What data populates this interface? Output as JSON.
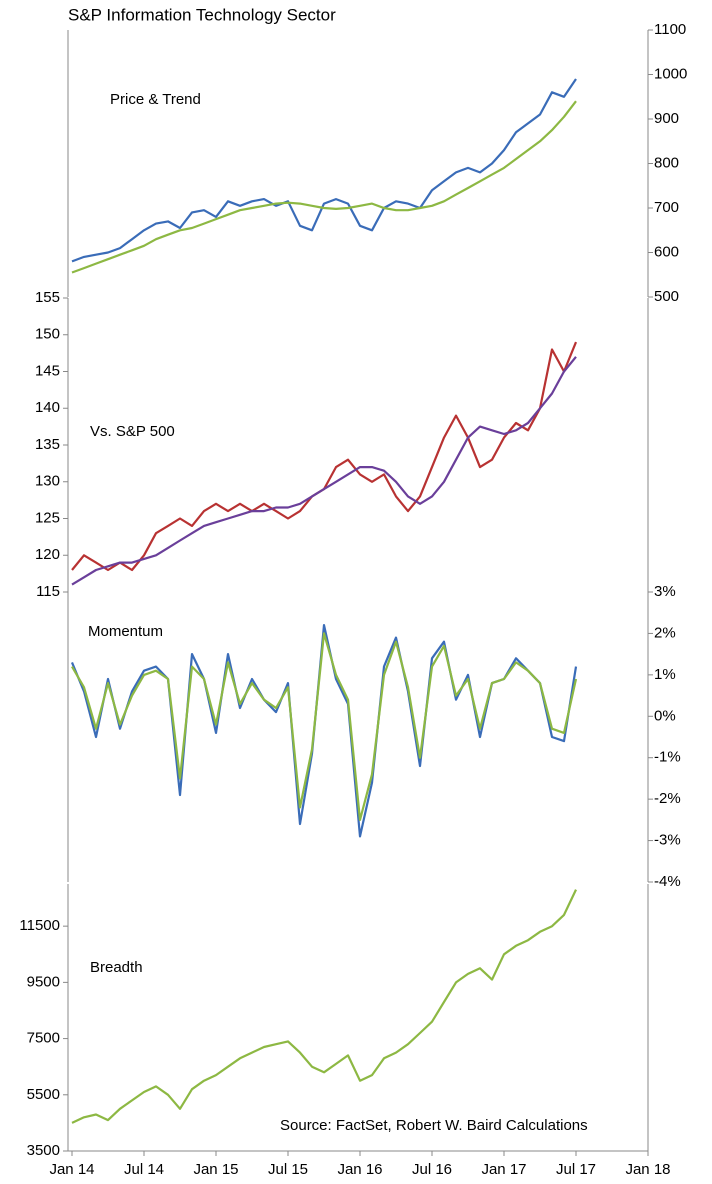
{
  "chart_data": [
    {
      "type": "line",
      "title": "S&P Information Technology Sector",
      "label": "Price & Trend",
      "x": [
        "2014-01",
        "2014-02",
        "2014-03",
        "2014-04",
        "2014-05",
        "2014-06",
        "2014-07",
        "2014-08",
        "2014-09",
        "2014-10",
        "2014-11",
        "2014-12",
        "2015-01",
        "2015-02",
        "2015-03",
        "2015-04",
        "2015-05",
        "2015-06",
        "2015-07",
        "2015-08",
        "2015-09",
        "2015-10",
        "2015-11",
        "2015-12",
        "2016-01",
        "2016-02",
        "2016-03",
        "2016-04",
        "2016-05",
        "2016-06",
        "2016-07",
        "2016-08",
        "2016-09",
        "2016-10",
        "2016-11",
        "2016-12",
        "2017-01",
        "2017-02",
        "2017-03",
        "2017-04",
        "2017-05",
        "2017-06",
        "2017-07"
      ],
      "xlim": [
        "2014-01",
        "2018-01"
      ],
      "ylim": [
        500,
        1100
      ],
      "yticks": [
        500,
        600,
        700,
        800,
        900,
        1000,
        1100
      ],
      "yaxis_side": "right",
      "series": [
        {
          "color": "#3a6cb8",
          "values": [
            580,
            590,
            595,
            600,
            610,
            630,
            650,
            665,
            670,
            655,
            690,
            695,
            680,
            715,
            705,
            715,
            720,
            705,
            715,
            660,
            650,
            710,
            720,
            710,
            660,
            650,
            700,
            715,
            710,
            700,
            740,
            760,
            780,
            790,
            780,
            800,
            830,
            870,
            890,
            910,
            960,
            950,
            990
          ]
        },
        {
          "color": "#8db843",
          "values": [
            555,
            565,
            575,
            585,
            595,
            605,
            615,
            630,
            640,
            650,
            655,
            665,
            675,
            685,
            695,
            700,
            705,
            710,
            712,
            710,
            705,
            700,
            698,
            700,
            705,
            710,
            700,
            695,
            695,
            700,
            705,
            715,
            730,
            745,
            760,
            775,
            790,
            810,
            830,
            850,
            875,
            905,
            940
          ]
        }
      ]
    },
    {
      "type": "line",
      "label": "Vs. S&P 500",
      "x": [
        "2014-01",
        "2014-02",
        "2014-03",
        "2014-04",
        "2014-05",
        "2014-06",
        "2014-07",
        "2014-08",
        "2014-09",
        "2014-10",
        "2014-11",
        "2014-12",
        "2015-01",
        "2015-02",
        "2015-03",
        "2015-04",
        "2015-05",
        "2015-06",
        "2015-07",
        "2015-08",
        "2015-09",
        "2015-10",
        "2015-11",
        "2015-12",
        "2016-01",
        "2016-02",
        "2016-03",
        "2016-04",
        "2016-05",
        "2016-06",
        "2016-07",
        "2016-08",
        "2016-09",
        "2016-10",
        "2016-11",
        "2016-12",
        "2017-01",
        "2017-02",
        "2017-03",
        "2017-04",
        "2017-05",
        "2017-06",
        "2017-07"
      ],
      "xlim": [
        "2014-01",
        "2018-01"
      ],
      "ylim": [
        115,
        155
      ],
      "yticks": [
        115,
        120,
        125,
        130,
        135,
        140,
        145,
        150,
        155
      ],
      "yaxis_side": "left",
      "series": [
        {
          "color": "#b83232",
          "values": [
            118,
            120,
            119,
            118,
            119,
            118,
            120,
            123,
            124,
            125,
            124,
            126,
            127,
            126,
            127,
            126,
            127,
            126,
            125,
            126,
            128,
            129,
            132,
            133,
            131,
            130,
            131,
            128,
            126,
            128,
            132,
            136,
            139,
            136,
            132,
            133,
            136,
            138,
            137,
            140,
            148,
            145,
            149
          ]
        },
        {
          "color": "#6a3f9a",
          "values": [
            116,
            117,
            118,
            118.5,
            119,
            119,
            119.5,
            120,
            121,
            122,
            123,
            124,
            124.5,
            125,
            125.5,
            126,
            126,
            126.5,
            126.5,
            127,
            128,
            129,
            130,
            131,
            132,
            132,
            131.5,
            130,
            128,
            127,
            128,
            130,
            133,
            136,
            137.5,
            137,
            136.5,
            137,
            138,
            140,
            142,
            145,
            147
          ]
        }
      ]
    },
    {
      "type": "line",
      "label": "Momentum",
      "x": [
        "2014-01",
        "2014-02",
        "2014-03",
        "2014-04",
        "2014-05",
        "2014-06",
        "2014-07",
        "2014-08",
        "2014-09",
        "2014-10",
        "2014-11",
        "2014-12",
        "2015-01",
        "2015-02",
        "2015-03",
        "2015-04",
        "2015-05",
        "2015-06",
        "2015-07",
        "2015-08",
        "2015-09",
        "2015-10",
        "2015-11",
        "2015-12",
        "2016-01",
        "2016-02",
        "2016-03",
        "2016-04",
        "2016-05",
        "2016-06",
        "2016-07",
        "2016-08",
        "2016-09",
        "2016-10",
        "2016-11",
        "2016-12",
        "2017-01",
        "2017-02",
        "2017-03",
        "2017-04",
        "2017-05",
        "2017-06",
        "2017-07"
      ],
      "xlim": [
        "2014-01",
        "2018-01"
      ],
      "ylim": [
        -4,
        3
      ],
      "yaxis_side": "right",
      "yticks": [
        {
          "value": -4,
          "label": "-4%"
        },
        {
          "value": -3,
          "label": "-3%"
        },
        {
          "value": -2,
          "label": "-2%"
        },
        {
          "value": -1,
          "label": "-1%"
        },
        {
          "value": 0,
          "label": "0%"
        },
        {
          "value": 1,
          "label": "1%"
        },
        {
          "value": 2,
          "label": "2%"
        },
        {
          "value": 3,
          "label": "3%"
        }
      ],
      "series": [
        {
          "color": "#3a6cb8",
          "values": [
            1.3,
            0.6,
            -0.5,
            0.9,
            -0.3,
            0.6,
            1.1,
            1.2,
            0.9,
            -1.9,
            1.5,
            0.9,
            -0.4,
            1.5,
            0.2,
            0.9,
            0.4,
            0.1,
            0.8,
            -2.6,
            -0.9,
            2.2,
            0.9,
            0.3,
            -2.9,
            -1.6,
            1.2,
            1.9,
            0.6,
            -1.2,
            1.4,
            1.8,
            0.4,
            1.0,
            -0.5,
            0.8,
            0.9,
            1.4,
            1.1,
            0.8,
            -0.5,
            -0.6,
            1.2
          ]
        },
        {
          "color": "#8db843",
          "values": [
            1.2,
            0.7,
            -0.3,
            0.8,
            -0.2,
            0.5,
            1.0,
            1.1,
            0.9,
            -1.5,
            1.2,
            0.9,
            -0.2,
            1.3,
            0.3,
            0.8,
            0.4,
            0.2,
            0.7,
            -2.2,
            -0.8,
            2.0,
            1.0,
            0.4,
            -2.5,
            -1.4,
            1.0,
            1.8,
            0.7,
            -1.0,
            1.2,
            1.7,
            0.5,
            0.9,
            -0.3,
            0.8,
            0.9,
            1.3,
            1.1,
            0.8,
            -0.3,
            -0.4,
            0.9
          ]
        }
      ]
    },
    {
      "type": "line",
      "label": "Breadth",
      "annotation": "Source: FactSet, Robert W. Baird Calculations",
      "x": [
        "2014-01",
        "2014-02",
        "2014-03",
        "2014-04",
        "2014-05",
        "2014-06",
        "2014-07",
        "2014-08",
        "2014-09",
        "2014-10",
        "2014-11",
        "2014-12",
        "2015-01",
        "2015-02",
        "2015-03",
        "2015-04",
        "2015-05",
        "2015-06",
        "2015-07",
        "2015-08",
        "2015-09",
        "2015-10",
        "2015-11",
        "2015-12",
        "2016-01",
        "2016-02",
        "2016-03",
        "2016-04",
        "2016-05",
        "2016-06",
        "2016-07",
        "2016-08",
        "2016-09",
        "2016-10",
        "2016-11",
        "2016-12",
        "2017-01",
        "2017-02",
        "2017-03",
        "2017-04",
        "2017-05",
        "2017-06",
        "2017-07"
      ],
      "xlim": [
        "2014-01",
        "2018-01"
      ],
      "ylim": [
        3500,
        13000
      ],
      "yticks": [
        3500,
        5500,
        7500,
        9500,
        11500
      ],
      "yaxis_side": "left",
      "xticks": [
        {
          "value": "2014-01",
          "label": "Jan 14"
        },
        {
          "value": "2014-07",
          "label": "Jul 14"
        },
        {
          "value": "2015-01",
          "label": "Jan 15"
        },
        {
          "value": "2015-07",
          "label": "Jul 15"
        },
        {
          "value": "2016-01",
          "label": "Jan 16"
        },
        {
          "value": "2016-07",
          "label": "Jul 16"
        },
        {
          "value": "2017-01",
          "label": "Jan 17"
        },
        {
          "value": "2017-07",
          "label": "Jul 17"
        },
        {
          "value": "2018-01",
          "label": "Jan 18"
        }
      ],
      "series": [
        {
          "color": "#8db843",
          "values": [
            4500,
            4700,
            4800,
            4600,
            5000,
            5300,
            5600,
            5800,
            5500,
            5000,
            5700,
            6000,
            6200,
            6500,
            6800,
            7000,
            7200,
            7300,
            7400,
            7000,
            6500,
            6300,
            6600,
            6900,
            6000,
            6200,
            6800,
            7000,
            7300,
            7700,
            8100,
            8800,
            9500,
            9800,
            10000,
            9600,
            10500,
            10800,
            11000,
            11300,
            11500,
            11900,
            12800
          ]
        }
      ]
    }
  ]
}
